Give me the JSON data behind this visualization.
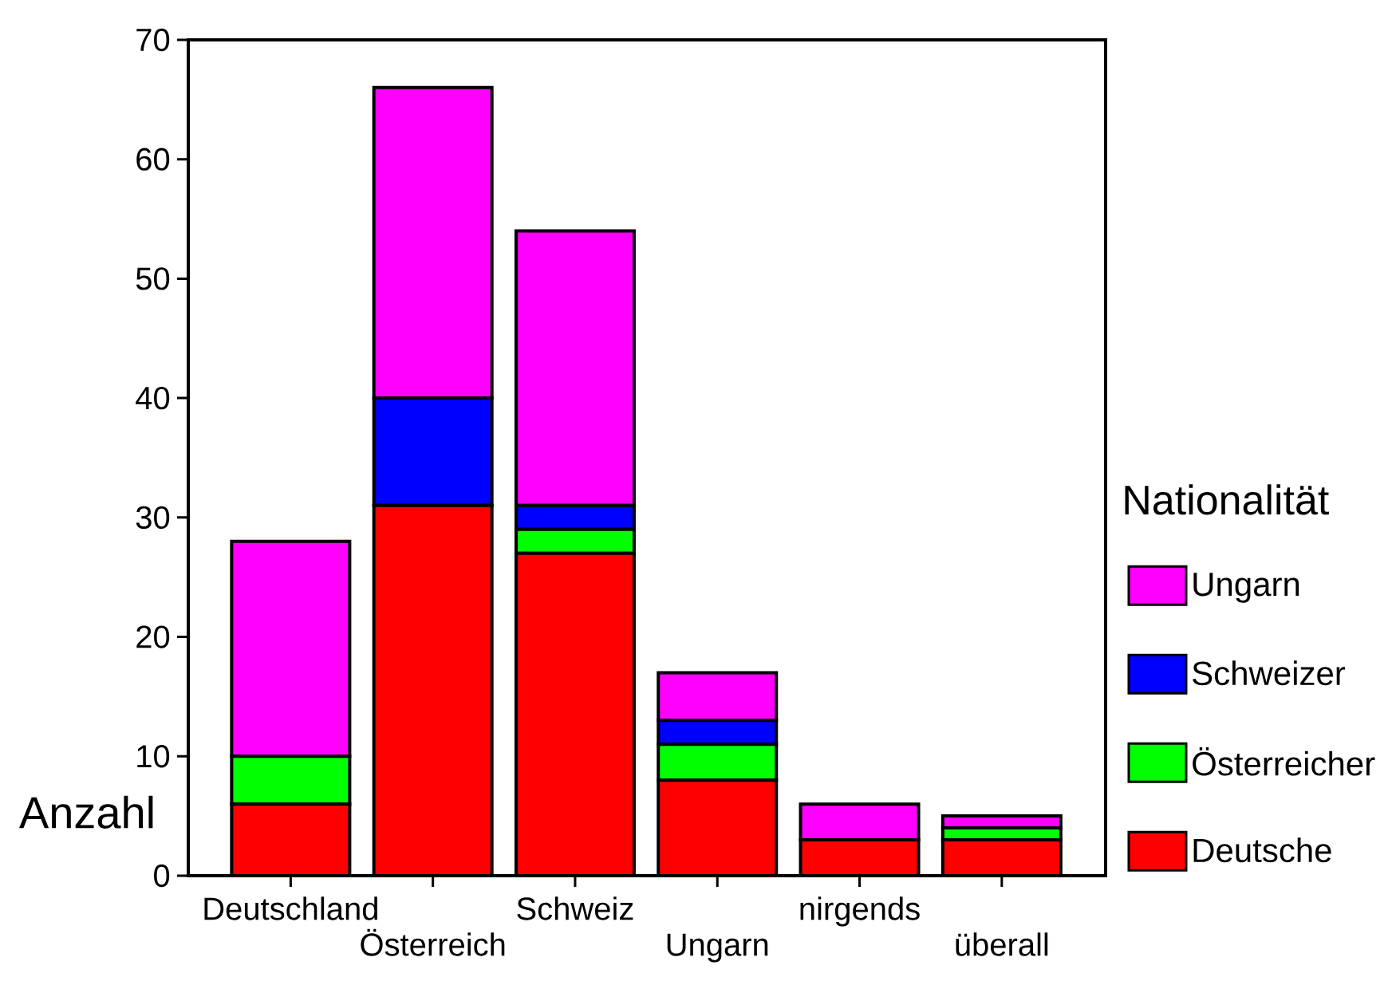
{
  "chart_data": {
    "type": "bar",
    "stacked": true,
    "ylabel": "Anzahl",
    "legend_title": "Nationalität",
    "legend": "right",
    "categories": [
      "Deutschland",
      "Österreich",
      "Schweiz",
      "Ungarn",
      "nirgends",
      "überall"
    ],
    "series": [
      {
        "name": "Deutsche",
        "color": "#ff0000",
        "values": [
          6,
          31,
          27,
          8,
          3,
          3
        ]
      },
      {
        "name": "Österreicher",
        "color": "#00ff00",
        "values": [
          4,
          0,
          2,
          3,
          0,
          1
        ]
      },
      {
        "name": "Schweizer",
        "color": "#0000ff",
        "values": [
          0,
          9,
          2,
          2,
          0,
          0
        ]
      },
      {
        "name": "Ungarn",
        "color": "#ff00ff",
        "values": [
          18,
          26,
          23,
          4,
          3,
          1
        ]
      }
    ],
    "ylim": [
      0,
      70
    ],
    "yticks": [
      0,
      10,
      20,
      30,
      40,
      50,
      60,
      70
    ],
    "grid": false
  }
}
